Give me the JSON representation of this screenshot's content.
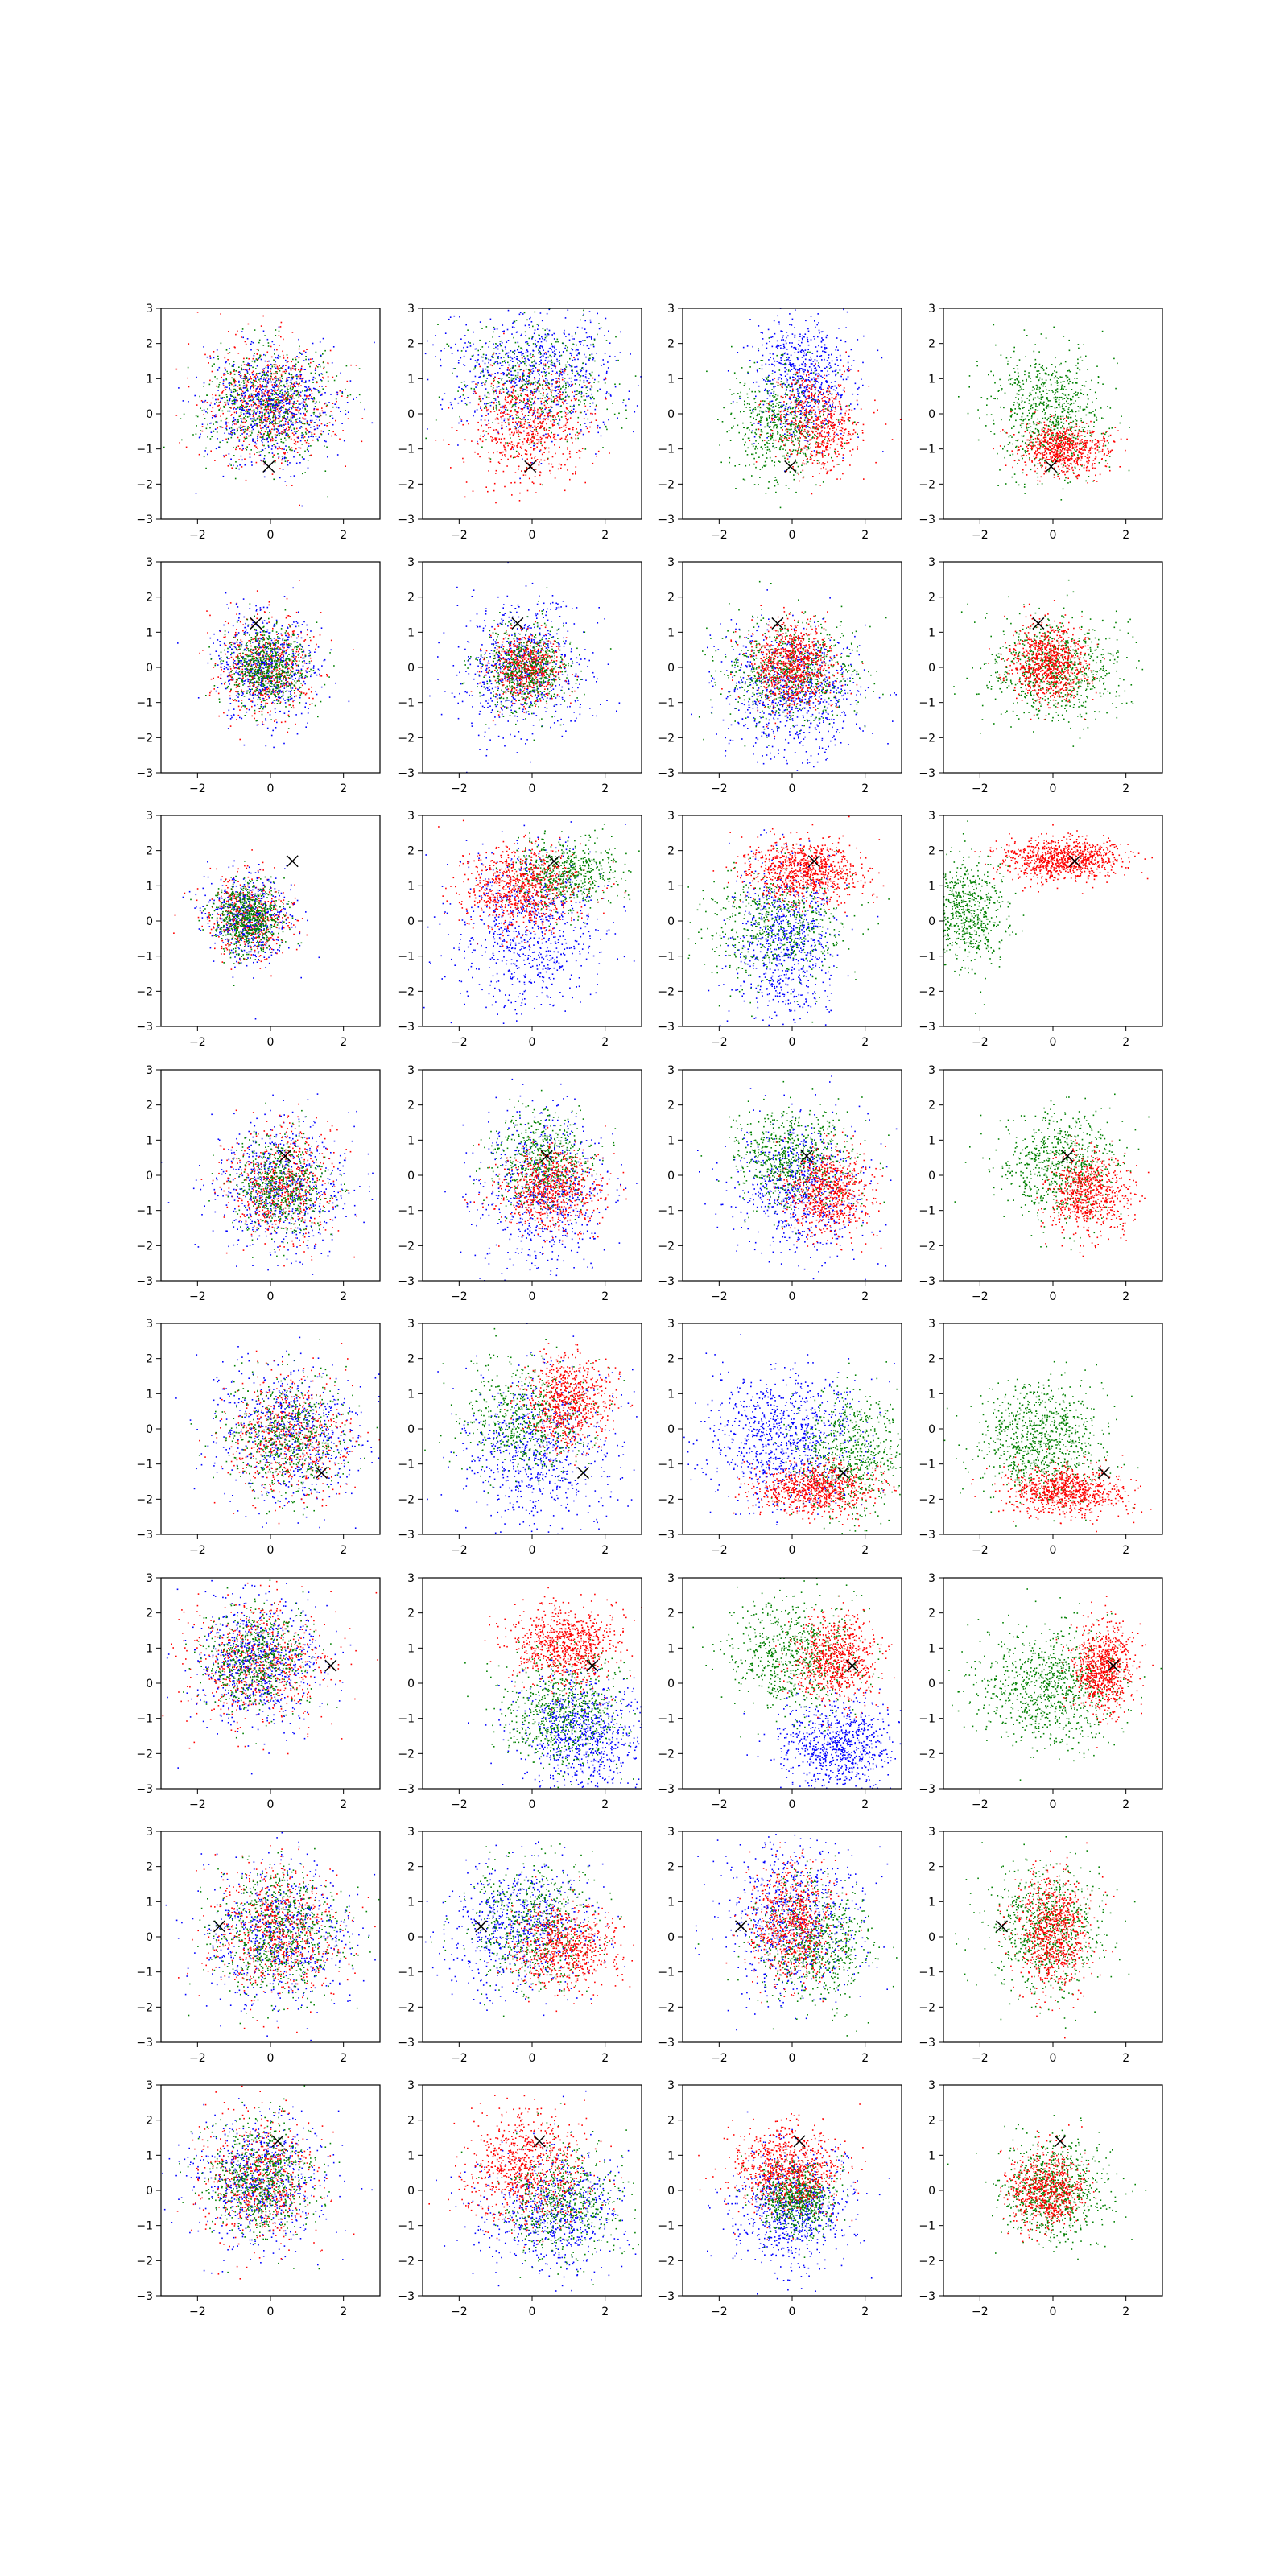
{
  "figure": {
    "layout": "8 rows x 4 columns grid of scatter panels",
    "colors": {
      "red": "#ff0000",
      "green": "#008000",
      "blue": "#0000ff",
      "marker": "#000000"
    }
  },
  "chart_data": {
    "type": "scatter",
    "rows": 8,
    "cols": 4,
    "xlim": [
      -3,
      3
    ],
    "ylim": [
      -3,
      3
    ],
    "xticks": [
      -2,
      0,
      2
    ],
    "yticks": [
      -3,
      -2,
      -1,
      0,
      1,
      2,
      3
    ],
    "xtick_labels": [
      "−2",
      "0",
      "2"
    ],
    "ytick_labels": [
      "−3",
      "−2",
      "−1",
      "0",
      "1",
      "2",
      "3"
    ],
    "grid": false,
    "legend": "none",
    "marker_symbol": "x",
    "markers": [
      {
        "row": 1,
        "x": -0.05,
        "y": -1.5
      },
      {
        "row": 2,
        "x": -0.4,
        "y": 1.25
      },
      {
        "row": 3,
        "x": 0.6,
        "y": 1.7
      },
      {
        "row": 4,
        "x": 0.4,
        "y": 0.55
      },
      {
        "row": 5,
        "x": 1.4,
        "y": -1.25
      },
      {
        "row": 6,
        "x": 1.65,
        "y": 0.5
      },
      {
        "row": 7,
        "x": -1.4,
        "y": 0.3
      },
      {
        "row": 8,
        "x": 0.2,
        "y": 1.4
      }
    ],
    "panels": [
      {
        "row": 1,
        "col": 1,
        "clusters": [
          {
            "color": "red",
            "cx": 0.0,
            "cy": 0.3,
            "sx": 0.85,
            "sy": 0.8,
            "n": 700
          },
          {
            "color": "green",
            "cx": -0.1,
            "cy": 0.3,
            "sx": 0.85,
            "sy": 0.8,
            "n": 700
          },
          {
            "color": "blue",
            "cx": 0.0,
            "cy": 0.3,
            "sx": 0.9,
            "sy": 0.85,
            "n": 700
          }
        ]
      },
      {
        "row": 1,
        "col": 2,
        "clusters": [
          {
            "color": "blue",
            "cx": 0.0,
            "cy": 1.2,
            "sx": 1.2,
            "sy": 0.9,
            "n": 800
          },
          {
            "color": "green",
            "cx": 0.2,
            "cy": 0.9,
            "sx": 1.1,
            "sy": 0.9,
            "n": 500
          },
          {
            "color": "red",
            "cx": -0.1,
            "cy": -0.3,
            "sx": 0.8,
            "sy": 0.8,
            "n": 700
          }
        ]
      },
      {
        "row": 1,
        "col": 3,
        "clusters": [
          {
            "color": "blue",
            "cx": 0.3,
            "cy": 1.0,
            "sx": 0.7,
            "sy": 0.9,
            "n": 700
          },
          {
            "color": "green",
            "cx": -0.3,
            "cy": -0.3,
            "sx": 0.7,
            "sy": 0.8,
            "n": 600
          },
          {
            "color": "red",
            "cx": 0.7,
            "cy": -0.3,
            "sx": 0.6,
            "sy": 0.7,
            "n": 600
          }
        ]
      },
      {
        "row": 1,
        "col": 4,
        "clusters": [
          {
            "color": "green",
            "cx": -0.1,
            "cy": 0.0,
            "sx": 0.75,
            "sy": 0.9,
            "n": 800
          },
          {
            "color": "red",
            "cx": 0.3,
            "cy": -1.0,
            "sx": 0.6,
            "sy": 0.35,
            "n": 700
          }
        ]
      },
      {
        "row": 2,
        "col": 1,
        "clusters": [
          {
            "color": "red",
            "cx": -0.1,
            "cy": 0.0,
            "sx": 0.65,
            "sy": 0.7,
            "n": 600
          },
          {
            "color": "blue",
            "cx": -0.1,
            "cy": 0.0,
            "sx": 0.7,
            "sy": 0.75,
            "n": 600
          },
          {
            "color": "green",
            "cx": -0.1,
            "cy": 0.0,
            "sx": 0.55,
            "sy": 0.55,
            "n": 700
          }
        ]
      },
      {
        "row": 2,
        "col": 2,
        "clusters": [
          {
            "color": "blue",
            "cx": -0.2,
            "cy": 0.0,
            "sx": 0.85,
            "sy": 0.9,
            "n": 700
          },
          {
            "color": "red",
            "cx": -0.2,
            "cy": 0.0,
            "sx": 0.5,
            "sy": 0.5,
            "n": 600
          },
          {
            "color": "green",
            "cx": -0.2,
            "cy": -0.1,
            "sx": 0.6,
            "sy": 0.6,
            "n": 600
          }
        ]
      },
      {
        "row": 2,
        "col": 3,
        "clusters": [
          {
            "color": "blue",
            "cx": 0.0,
            "cy": -0.7,
            "sx": 1.0,
            "sy": 0.9,
            "n": 800
          },
          {
            "color": "green",
            "cx": -0.1,
            "cy": -0.1,
            "sx": 0.95,
            "sy": 0.75,
            "n": 700
          },
          {
            "color": "red",
            "cx": 0.0,
            "cy": 0.1,
            "sx": 0.55,
            "sy": 0.6,
            "n": 800
          }
        ]
      },
      {
        "row": 2,
        "col": 4,
        "clusters": [
          {
            "color": "green",
            "cx": 0.0,
            "cy": 0.0,
            "sx": 0.95,
            "sy": 0.75,
            "n": 800
          },
          {
            "color": "red",
            "cx": -0.1,
            "cy": 0.1,
            "sx": 0.5,
            "sy": 0.55,
            "n": 800
          }
        ]
      },
      {
        "row": 3,
        "col": 1,
        "clusters": [
          {
            "color": "red",
            "cx": -0.6,
            "cy": 0.1,
            "sx": 0.55,
            "sy": 0.6,
            "n": 500
          },
          {
            "color": "blue",
            "cx": -0.6,
            "cy": 0.1,
            "sx": 0.6,
            "sy": 0.65,
            "n": 500
          },
          {
            "color": "green",
            "cx": -0.6,
            "cy": 0.1,
            "sx": 0.45,
            "sy": 0.5,
            "n": 700
          }
        ]
      },
      {
        "row": 3,
        "col": 2,
        "clusters": [
          {
            "color": "blue",
            "cx": 0.0,
            "cy": -0.3,
            "sx": 1.0,
            "sy": 1.2,
            "n": 800
          },
          {
            "color": "green",
            "cx": 0.9,
            "cy": 1.3,
            "sx": 0.7,
            "sy": 0.5,
            "n": 600
          },
          {
            "color": "red",
            "cx": -0.3,
            "cy": 0.9,
            "sx": 0.8,
            "sy": 0.6,
            "n": 800
          }
        ]
      },
      {
        "row": 3,
        "col": 3,
        "clusters": [
          {
            "color": "blue",
            "cx": -0.2,
            "cy": -0.6,
            "sx": 0.7,
            "sy": 1.2,
            "n": 800
          },
          {
            "color": "green",
            "cx": -0.4,
            "cy": -0.1,
            "sx": 1.0,
            "sy": 0.8,
            "n": 600
          },
          {
            "color": "red",
            "cx": 0.3,
            "cy": 1.4,
            "sx": 0.8,
            "sy": 0.45,
            "n": 900
          }
        ]
      },
      {
        "row": 3,
        "col": 4,
        "clusters": [
          {
            "color": "green",
            "cx": -2.4,
            "cy": 0.3,
            "sx": 0.6,
            "sy": 0.8,
            "n": 700
          },
          {
            "color": "red",
            "cx": 0.2,
            "cy": 1.75,
            "sx": 0.8,
            "sy": 0.3,
            "n": 900
          }
        ]
      },
      {
        "row": 4,
        "col": 1,
        "clusters": [
          {
            "color": "blue",
            "cx": 0.3,
            "cy": -0.3,
            "sx": 0.95,
            "sy": 0.95,
            "n": 700
          },
          {
            "color": "red",
            "cx": 0.3,
            "cy": -0.3,
            "sx": 0.7,
            "sy": 0.8,
            "n": 600
          },
          {
            "color": "green",
            "cx": 0.3,
            "cy": -0.3,
            "sx": 0.65,
            "sy": 0.7,
            "n": 600
          }
        ]
      },
      {
        "row": 4,
        "col": 2,
        "clusters": [
          {
            "color": "blue",
            "cx": 0.3,
            "cy": -0.5,
            "sx": 0.9,
            "sy": 1.1,
            "n": 700
          },
          {
            "color": "green",
            "cx": 0.3,
            "cy": 0.4,
            "sx": 0.7,
            "sy": 0.7,
            "n": 600
          },
          {
            "color": "red",
            "cx": 0.5,
            "cy": -0.4,
            "sx": 0.7,
            "sy": 0.6,
            "n": 700
          }
        ]
      },
      {
        "row": 4,
        "col": 3,
        "clusters": [
          {
            "color": "blue",
            "cx": 0.2,
            "cy": -0.4,
            "sx": 0.9,
            "sy": 1.0,
            "n": 700
          },
          {
            "color": "green",
            "cx": 0.0,
            "cy": 0.5,
            "sx": 0.8,
            "sy": 0.7,
            "n": 700
          },
          {
            "color": "red",
            "cx": 1.0,
            "cy": -0.5,
            "sx": 0.6,
            "sy": 0.6,
            "n": 700
          }
        ]
      },
      {
        "row": 4,
        "col": 4,
        "clusters": [
          {
            "color": "green",
            "cx": 0.2,
            "cy": 0.3,
            "sx": 0.8,
            "sy": 0.8,
            "n": 700
          },
          {
            "color": "red",
            "cx": 1.0,
            "cy": -0.5,
            "sx": 0.55,
            "sy": 0.55,
            "n": 700
          }
        ]
      },
      {
        "row": 5,
        "col": 1,
        "clusters": [
          {
            "color": "blue",
            "cx": 0.6,
            "cy": -0.2,
            "sx": 1.0,
            "sy": 1.0,
            "n": 700
          },
          {
            "color": "red",
            "cx": 0.5,
            "cy": -0.2,
            "sx": 0.8,
            "sy": 0.9,
            "n": 600
          },
          {
            "color": "green",
            "cx": 0.5,
            "cy": -0.2,
            "sx": 0.8,
            "sy": 0.9,
            "n": 600
          }
        ]
      },
      {
        "row": 5,
        "col": 2,
        "clusters": [
          {
            "color": "blue",
            "cx": 0.2,
            "cy": -0.6,
            "sx": 1.1,
            "sy": 1.1,
            "n": 700
          },
          {
            "color": "green",
            "cx": -0.2,
            "cy": 0.3,
            "sx": 0.9,
            "sy": 0.8,
            "n": 600
          },
          {
            "color": "red",
            "cx": 1.0,
            "cy": 0.8,
            "sx": 0.6,
            "sy": 0.6,
            "n": 700
          }
        ]
      },
      {
        "row": 5,
        "col": 3,
        "clusters": [
          {
            "color": "blue",
            "cx": -0.3,
            "cy": -0.3,
            "sx": 1.0,
            "sy": 0.95,
            "n": 900
          },
          {
            "color": "green",
            "cx": 1.6,
            "cy": -0.7,
            "sx": 0.7,
            "sy": 0.9,
            "n": 700
          },
          {
            "color": "red",
            "cx": 0.6,
            "cy": -1.7,
            "sx": 0.8,
            "sy": 0.35,
            "n": 800
          }
        ]
      },
      {
        "row": 5,
        "col": 4,
        "clusters": [
          {
            "color": "green",
            "cx": -0.3,
            "cy": -0.3,
            "sx": 0.85,
            "sy": 0.8,
            "n": 900
          },
          {
            "color": "red",
            "cx": 0.3,
            "cy": -1.8,
            "sx": 0.75,
            "sy": 0.35,
            "n": 800
          }
        ]
      },
      {
        "row": 6,
        "col": 1,
        "clusters": [
          {
            "color": "red",
            "cx": -0.3,
            "cy": 0.6,
            "sx": 1.0,
            "sy": 0.9,
            "n": 700
          },
          {
            "color": "blue",
            "cx": -0.3,
            "cy": 0.6,
            "sx": 0.9,
            "sy": 0.9,
            "n": 700
          },
          {
            "color": "green",
            "cx": -0.4,
            "cy": 0.6,
            "sx": 0.7,
            "sy": 0.7,
            "n": 600
          }
        ]
      },
      {
        "row": 6,
        "col": 2,
        "clusters": [
          {
            "color": "blue",
            "cx": 1.4,
            "cy": -1.4,
            "sx": 0.8,
            "sy": 0.8,
            "n": 800
          },
          {
            "color": "green",
            "cx": 0.8,
            "cy": -0.8,
            "sx": 0.8,
            "sy": 0.8,
            "n": 700
          },
          {
            "color": "red",
            "cx": 0.9,
            "cy": 1.1,
            "sx": 0.7,
            "sy": 0.55,
            "n": 800
          }
        ]
      },
      {
        "row": 6,
        "col": 3,
        "clusters": [
          {
            "color": "blue",
            "cx": 1.2,
            "cy": -1.8,
            "sx": 0.8,
            "sy": 0.7,
            "n": 800
          },
          {
            "color": "green",
            "cx": 0.0,
            "cy": 0.8,
            "sx": 0.9,
            "sy": 0.8,
            "n": 700
          },
          {
            "color": "red",
            "cx": 1.2,
            "cy": 0.7,
            "sx": 0.55,
            "sy": 0.6,
            "n": 700
          }
        ]
      },
      {
        "row": 6,
        "col": 4,
        "clusters": [
          {
            "color": "green",
            "cx": -0.1,
            "cy": -0.1,
            "sx": 1.0,
            "sy": 0.85,
            "n": 900
          },
          {
            "color": "red",
            "cx": 1.4,
            "cy": 0.4,
            "sx": 0.4,
            "sy": 0.6,
            "n": 800
          }
        ]
      },
      {
        "row": 7,
        "col": 1,
        "clusters": [
          {
            "color": "blue",
            "cx": 0.2,
            "cy": 0.1,
            "sx": 1.0,
            "sy": 1.0,
            "n": 700
          },
          {
            "color": "red",
            "cx": 0.2,
            "cy": 0.1,
            "sx": 0.9,
            "sy": 0.9,
            "n": 700
          },
          {
            "color": "green",
            "cx": 0.2,
            "cy": 0.1,
            "sx": 0.9,
            "sy": 0.9,
            "n": 700
          }
        ]
      },
      {
        "row": 7,
        "col": 2,
        "clusters": [
          {
            "color": "blue",
            "cx": -0.3,
            "cy": 0.3,
            "sx": 1.0,
            "sy": 0.9,
            "n": 700
          },
          {
            "color": "green",
            "cx": 0.0,
            "cy": 0.3,
            "sx": 0.9,
            "sy": 0.9,
            "n": 600
          },
          {
            "color": "red",
            "cx": 0.9,
            "cy": -0.3,
            "sx": 0.7,
            "sy": 0.6,
            "n": 700
          }
        ]
      },
      {
        "row": 7,
        "col": 3,
        "clusters": [
          {
            "color": "blue",
            "cx": 0.0,
            "cy": 0.5,
            "sx": 0.9,
            "sy": 1.1,
            "n": 800
          },
          {
            "color": "green",
            "cx": 0.6,
            "cy": -0.2,
            "sx": 0.8,
            "sy": 0.9,
            "n": 700
          },
          {
            "color": "red",
            "cx": 0.0,
            "cy": 0.4,
            "sx": 0.6,
            "sy": 0.8,
            "n": 700
          }
        ]
      },
      {
        "row": 7,
        "col": 4,
        "clusters": [
          {
            "color": "green",
            "cx": -0.2,
            "cy": 0.2,
            "sx": 0.8,
            "sy": 0.9,
            "n": 800
          },
          {
            "color": "red",
            "cx": 0.0,
            "cy": 0.1,
            "sx": 0.5,
            "sy": 0.8,
            "n": 800
          }
        ]
      },
      {
        "row": 8,
        "col": 1,
        "clusters": [
          {
            "color": "blue",
            "cx": -0.3,
            "cy": 0.3,
            "sx": 0.95,
            "sy": 0.9,
            "n": 700
          },
          {
            "color": "red",
            "cx": -0.3,
            "cy": 0.3,
            "sx": 0.8,
            "sy": 0.9,
            "n": 600
          },
          {
            "color": "green",
            "cx": -0.3,
            "cy": 0.3,
            "sx": 0.7,
            "sy": 0.8,
            "n": 700
          }
        ]
      },
      {
        "row": 8,
        "col": 2,
        "clusters": [
          {
            "color": "blue",
            "cx": 0.6,
            "cy": -0.6,
            "sx": 1.0,
            "sy": 0.9,
            "n": 700
          },
          {
            "color": "green",
            "cx": 0.8,
            "cy": -0.3,
            "sx": 0.8,
            "sy": 0.8,
            "n": 600
          },
          {
            "color": "red",
            "cx": -0.2,
            "cy": 0.6,
            "sx": 0.9,
            "sy": 0.8,
            "n": 800
          }
        ]
      },
      {
        "row": 8,
        "col": 3,
        "clusters": [
          {
            "color": "blue",
            "cx": 0.0,
            "cy": -0.5,
            "sx": 0.8,
            "sy": 0.8,
            "n": 800
          },
          {
            "color": "green",
            "cx": 0.1,
            "cy": -0.2,
            "sx": 0.5,
            "sy": 0.5,
            "n": 700
          },
          {
            "color": "red",
            "cx": -0.1,
            "cy": 0.6,
            "sx": 0.7,
            "sy": 0.6,
            "n": 800
          }
        ]
      },
      {
        "row": 8,
        "col": 4,
        "clusters": [
          {
            "color": "green",
            "cx": 0.0,
            "cy": 0.0,
            "sx": 0.7,
            "sy": 0.7,
            "n": 800
          },
          {
            "color": "red",
            "cx": -0.2,
            "cy": 0.0,
            "sx": 0.5,
            "sy": 0.55,
            "n": 700
          }
        ]
      }
    ]
  }
}
